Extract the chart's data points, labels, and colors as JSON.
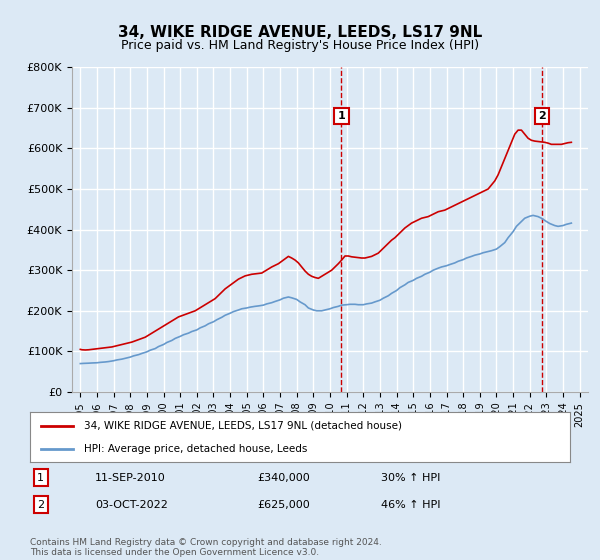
{
  "title": "34, WIKE RIDGE AVENUE, LEEDS, LS17 9NL",
  "subtitle": "Price paid vs. HM Land Registry's House Price Index (HPI)",
  "background_color": "#dce9f5",
  "plot_bg_color": "#dce9f5",
  "red_line_color": "#cc0000",
  "blue_line_color": "#6699cc",
  "grid_color": "#ffffff",
  "annotation_line_color": "#cc0000",
  "ylim": [
    0,
    800000
  ],
  "yticks": [
    0,
    100000,
    200000,
    300000,
    400000,
    500000,
    600000,
    700000,
    800000
  ],
  "ytick_labels": [
    "£0",
    "£100K",
    "£200K",
    "£300K",
    "£400K",
    "£500K",
    "£600K",
    "£700K",
    "£800K"
  ],
  "xlim": [
    1994.5,
    2025.5
  ],
  "xlabel_years": [
    1995,
    1996,
    1997,
    1998,
    1999,
    2000,
    2001,
    2002,
    2003,
    2004,
    2005,
    2006,
    2007,
    2008,
    2009,
    2010,
    2011,
    2012,
    2013,
    2014,
    2015,
    2016,
    2017,
    2018,
    2019,
    2020,
    2021,
    2022,
    2023,
    2024,
    2025
  ],
  "event1_x": 2010.69,
  "event1_y": 340000,
  "event1_label": "1",
  "event1_date": "11-SEP-2010",
  "event1_price": "£340,000",
  "event1_hpi": "30% ↑ HPI",
  "event2_x": 2022.75,
  "event2_y": 625000,
  "event2_label": "2",
  "event2_date": "03-OCT-2022",
  "event2_price": "£625,000",
  "event2_hpi": "46% ↑ HPI",
  "legend_line1": "34, WIKE RIDGE AVENUE, LEEDS, LS17 9NL (detached house)",
  "legend_line2": "HPI: Average price, detached house, Leeds",
  "footer": "Contains HM Land Registry data © Crown copyright and database right 2024.\nThis data is licensed under the Open Government Licence v3.0.",
  "red_x": [
    1995.0,
    1995.1,
    1995.3,
    1995.5,
    1995.7,
    1995.9,
    1996.1,
    1996.3,
    1996.5,
    1996.7,
    1996.9,
    1997.1,
    1997.3,
    1997.5,
    1997.7,
    1997.9,
    1998.1,
    1998.3,
    1998.5,
    1998.7,
    1998.9,
    1999.1,
    1999.3,
    1999.5,
    1999.7,
    1999.9,
    2000.1,
    2000.3,
    2000.5,
    2000.7,
    2000.9,
    2001.1,
    2001.3,
    2001.5,
    2001.7,
    2001.9,
    2002.1,
    2002.3,
    2002.5,
    2002.7,
    2002.9,
    2003.1,
    2003.3,
    2003.5,
    2003.7,
    2003.9,
    2004.1,
    2004.3,
    2004.5,
    2004.7,
    2004.9,
    2005.1,
    2005.3,
    2005.5,
    2005.7,
    2005.9,
    2006.1,
    2006.3,
    2006.5,
    2006.7,
    2006.9,
    2007.1,
    2007.3,
    2007.5,
    2007.7,
    2007.9,
    2008.1,
    2008.3,
    2008.5,
    2008.7,
    2008.9,
    2009.1,
    2009.3,
    2009.5,
    2009.7,
    2009.9,
    2010.1,
    2010.3,
    2010.5,
    2010.7,
    2010.9,
    2011.1,
    2011.3,
    2011.5,
    2011.7,
    2011.9,
    2012.1,
    2012.3,
    2012.5,
    2012.7,
    2012.9,
    2013.1,
    2013.3,
    2013.5,
    2013.7,
    2013.9,
    2014.1,
    2014.3,
    2014.5,
    2014.7,
    2014.9,
    2015.1,
    2015.3,
    2015.5,
    2015.7,
    2015.9,
    2016.1,
    2016.3,
    2016.5,
    2016.7,
    2016.9,
    2017.1,
    2017.3,
    2017.5,
    2017.7,
    2017.9,
    2018.1,
    2018.3,
    2018.5,
    2018.7,
    2018.9,
    2019.1,
    2019.3,
    2019.5,
    2019.7,
    2019.9,
    2020.1,
    2020.3,
    2020.5,
    2020.7,
    2020.9,
    2021.1,
    2021.3,
    2021.5,
    2021.7,
    2021.9,
    2022.1,
    2022.3,
    2022.5,
    2022.7,
    2022.9,
    2023.1,
    2023.3,
    2023.5,
    2023.7,
    2023.9,
    2024.1,
    2024.3,
    2024.5
  ],
  "red_y_raw": [
    105000,
    104000,
    103500,
    104000,
    105000,
    106000,
    107000,
    108000,
    109000,
    110000,
    111000,
    113000,
    115000,
    117000,
    119000,
    121000,
    123000,
    126000,
    129000,
    132000,
    135000,
    140000,
    145000,
    150000,
    155000,
    160000,
    165000,
    170000,
    175000,
    180000,
    185000,
    188000,
    191000,
    194000,
    197000,
    200000,
    205000,
    210000,
    215000,
    220000,
    225000,
    230000,
    238000,
    246000,
    254000,
    260000,
    266000,
    272000,
    278000,
    282000,
    286000,
    288000,
    290000,
    291000,
    292000,
    293000,
    298000,
    303000,
    308000,
    312000,
    316000,
    322000,
    328000,
    334000,
    330000,
    325000,
    318000,
    308000,
    298000,
    290000,
    285000,
    282000,
    280000,
    285000,
    290000,
    295000,
    300000,
    308000,
    316000,
    325000,
    335000,
    335000,
    333000,
    332000,
    331000,
    330000,
    330000,
    332000,
    334000,
    338000,
    342000,
    350000,
    358000,
    366000,
    374000,
    380000,
    388000,
    396000,
    404000,
    410000,
    416000,
    420000,
    424000,
    428000,
    430000,
    432000,
    436000,
    440000,
    444000,
    446000,
    448000,
    452000,
    456000,
    460000,
    464000,
    468000,
    472000,
    476000,
    480000,
    484000,
    488000,
    492000,
    496000,
    500000,
    510000,
    520000,
    535000,
    555000,
    575000,
    595000,
    615000,
    635000,
    645000,
    645000,
    635000,
    625000,
    620000,
    618000,
    617000,
    616000,
    615000,
    613000,
    610000,
    610000,
    610000,
    610000,
    612000,
    614000,
    615000
  ],
  "blue_x": [
    1995.0,
    1995.2,
    1995.5,
    1995.7,
    1996.0,
    1996.2,
    1996.5,
    1996.7,
    1997.0,
    1997.2,
    1997.5,
    1997.7,
    1998.0,
    1998.2,
    1998.5,
    1998.7,
    1999.0,
    1999.2,
    1999.5,
    1999.7,
    2000.0,
    2000.2,
    2000.5,
    2000.7,
    2001.0,
    2001.2,
    2001.5,
    2001.7,
    2002.0,
    2002.2,
    2002.5,
    2002.7,
    2003.0,
    2003.2,
    2003.5,
    2003.7,
    2004.0,
    2004.2,
    2004.5,
    2004.7,
    2005.0,
    2005.2,
    2005.5,
    2005.7,
    2006.0,
    2006.2,
    2006.5,
    2006.7,
    2007.0,
    2007.2,
    2007.5,
    2007.7,
    2008.0,
    2008.2,
    2008.5,
    2008.7,
    2009.0,
    2009.2,
    2009.5,
    2009.7,
    2010.0,
    2010.2,
    2010.5,
    2010.7,
    2011.0,
    2011.2,
    2011.5,
    2011.7,
    2012.0,
    2012.2,
    2012.5,
    2012.7,
    2013.0,
    2013.2,
    2013.5,
    2013.7,
    2014.0,
    2014.2,
    2014.5,
    2014.7,
    2015.0,
    2015.2,
    2015.5,
    2015.7,
    2016.0,
    2016.2,
    2016.5,
    2016.7,
    2017.0,
    2017.2,
    2017.5,
    2017.7,
    2018.0,
    2018.2,
    2018.5,
    2018.7,
    2019.0,
    2019.2,
    2019.5,
    2019.7,
    2020.0,
    2020.2,
    2020.5,
    2020.7,
    2021.0,
    2021.2,
    2021.5,
    2021.7,
    2022.0,
    2022.2,
    2022.5,
    2022.7,
    2023.0,
    2023.2,
    2023.5,
    2023.7,
    2024.0,
    2024.2,
    2024.5
  ],
  "blue_y_raw": [
    70000,
    70500,
    71000,
    71500,
    72000,
    73000,
    74000,
    75000,
    77000,
    79000,
    81000,
    83000,
    86000,
    89000,
    92000,
    95000,
    99000,
    103000,
    107000,
    112000,
    117000,
    122000,
    127000,
    132000,
    137000,
    141000,
    145000,
    149000,
    153000,
    158000,
    163000,
    168000,
    173000,
    178000,
    184000,
    189000,
    194000,
    198000,
    202000,
    205000,
    207000,
    209000,
    211000,
    212000,
    214000,
    217000,
    220000,
    223000,
    227000,
    231000,
    234000,
    232000,
    228000,
    222000,
    215000,
    207000,
    202000,
    200000,
    200000,
    202000,
    205000,
    208000,
    211000,
    214000,
    215000,
    216000,
    216000,
    215000,
    215000,
    217000,
    219000,
    222000,
    226000,
    231000,
    237000,
    243000,
    250000,
    257000,
    264000,
    270000,
    275000,
    280000,
    285000,
    290000,
    295000,
    300000,
    305000,
    308000,
    311000,
    314000,
    318000,
    322000,
    326000,
    330000,
    334000,
    337000,
    340000,
    343000,
    346000,
    348000,
    352000,
    358000,
    368000,
    380000,
    395000,
    408000,
    420000,
    428000,
    433000,
    435000,
    432000,
    428000,
    420000,
    415000,
    410000,
    408000,
    410000,
    413000,
    416000
  ]
}
